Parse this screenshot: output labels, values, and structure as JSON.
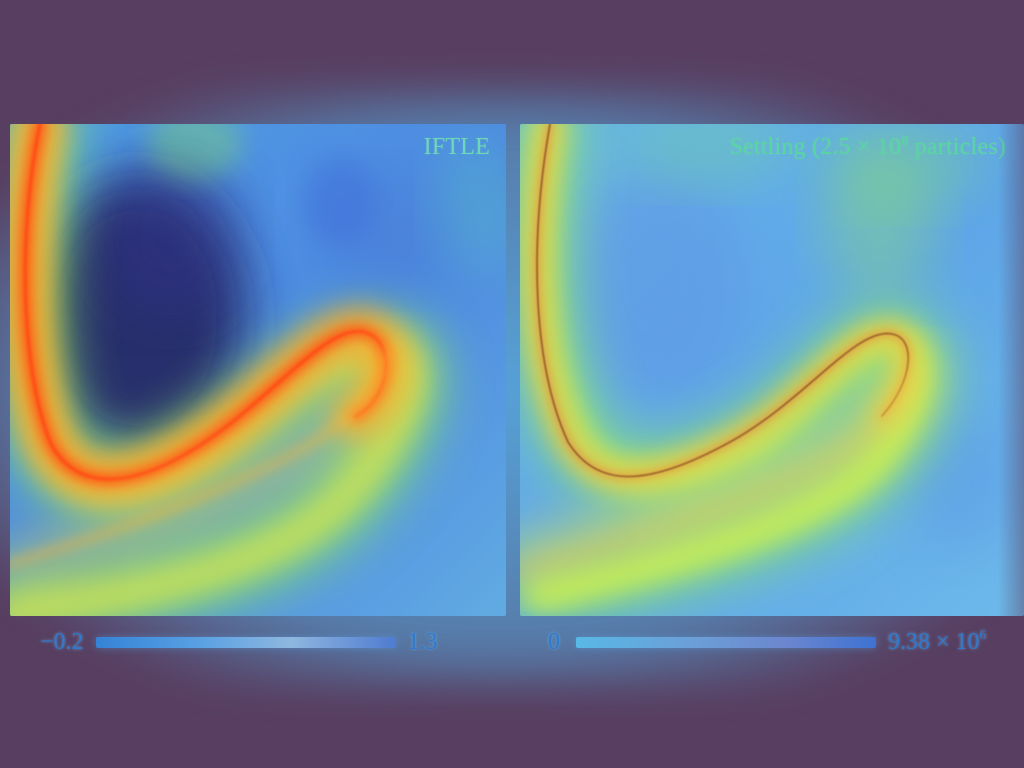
{
  "panels": {
    "left_title": "IFTLE",
    "right_title_prefix": "Settling (2.5 × 10",
    "right_title_sup": "8",
    "right_title_suffix": " particles)"
  },
  "colorbars": {
    "left_min": "−0.2",
    "left_max": "1.3",
    "right_min": "0",
    "right_max_prefix": "9.38 × 10",
    "right_max_sup": "6"
  },
  "colors": {
    "background": "#583f61",
    "left_panel_base": "#3f8fe3",
    "right_panel_base": "#61b5ea",
    "ridge_orange": "#ff5a14",
    "ridge_yellow": "#d5ff2f",
    "title_green": "#6ed7ba"
  }
}
